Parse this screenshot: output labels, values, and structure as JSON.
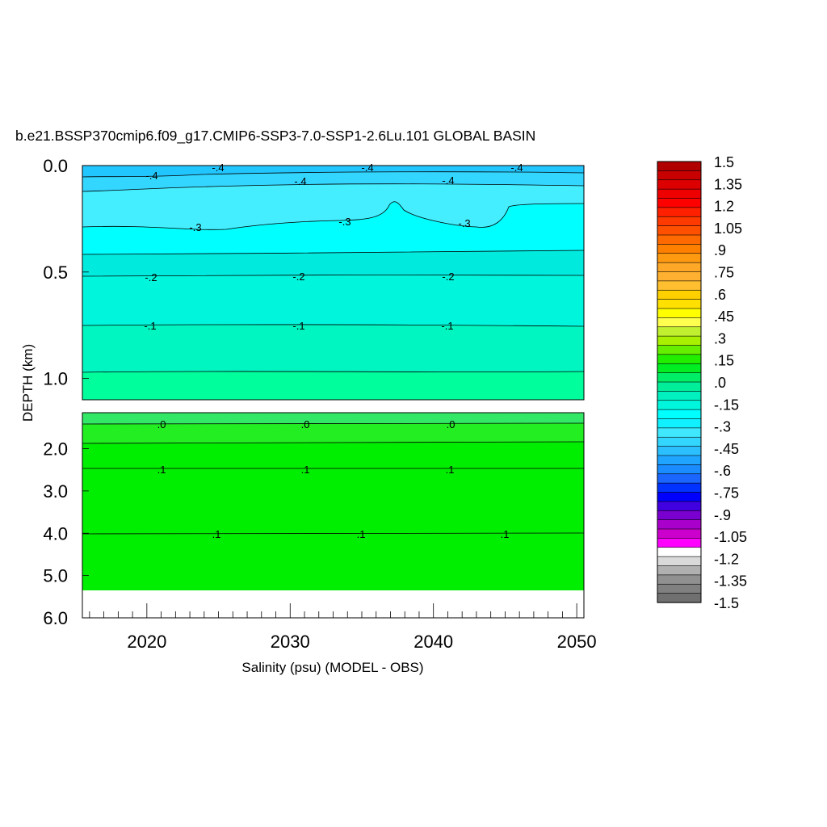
{
  "chart_data": {
    "type": "heatmap",
    "title": "b.e21.BSSP370cmip6.f09_g17.CMIP6-SSP3-7.0-SSP1-2.6Lu.101 GLOBAL BASIN",
    "xlabel": "Salinity (psu) (MODEL - OBS)",
    "ylabel": "DEPTH (km)",
    "xlim": [
      2015.5,
      2050.5
    ],
    "x_ticks": [
      "2020",
      "2030",
      "2040",
      "2050"
    ],
    "upper_panel": {
      "ylim": [
        0.0,
        1.1
      ],
      "y_ticks": [
        "0.0",
        "0.5",
        "1.0"
      ],
      "contours": [
        {
          "level": -0.4,
          "labels": [
            "-.4",
            "-.4",
            "-.4"
          ]
        },
        {
          "level": -0.4,
          "labels": [
            "-.4",
            "-.4",
            "-.4"
          ]
        },
        {
          "level": -0.3,
          "labels": [
            "-.3",
            "-.3",
            "-.3"
          ]
        },
        {
          "level": -0.2,
          "labels": [
            "-.2",
            "-.2",
            "-.2"
          ]
        },
        {
          "level": -0.1,
          "labels": [
            "-.1",
            "-.1",
            "-.1"
          ]
        }
      ]
    },
    "lower_panel": {
      "ylim": [
        1.15,
        6.0
      ],
      "y_ticks": [
        "2.0",
        "3.0",
        "4.0",
        "5.0",
        "6.0"
      ],
      "contours": [
        {
          "level": 0.0,
          "labels": [
            ".0",
            ".0",
            ".0"
          ]
        },
        {
          "level": 0.1,
          "labels": [
            ".1",
            ".1",
            ".1"
          ]
        },
        {
          "level": 0.1,
          "labels": [
            ".1",
            ".1",
            ".1"
          ]
        }
      ]
    },
    "colorbar": {
      "min": -1.5,
      "max": 1.5,
      "step": 0.075,
      "labels": [
        "1.5",
        "1.35",
        "1.2",
        "1.05",
        ".9",
        ".75",
        ".6",
        ".45",
        ".3",
        ".15",
        ".0",
        "-.15",
        "-.3",
        "-.45",
        "-.6",
        "-.75",
        "-.9",
        "-1.05",
        "-1.2",
        "-1.35",
        "-1.5"
      ],
      "colors": [
        "#b00000",
        "#c80000",
        "#dc0000",
        "#ef0000",
        "#ff0000",
        "#ff2000",
        "#ff3a00",
        "#ff5000",
        "#ff6a00",
        "#ff8000",
        "#ff9a10",
        "#ffa828",
        "#ffb030",
        "#ffbf30",
        "#ffd000",
        "#ffe000",
        "#ffff00",
        "#ffff50",
        "#c0f030",
        "#a8f000",
        "#66ee00",
        "#22ee00",
        "#00ee22",
        "#00ee66",
        "#00ee99",
        "#00f0c0",
        "#00f6dc",
        "#00ffff",
        "#10f0ff",
        "#40e8ff",
        "#33d6ff",
        "#2bbfff",
        "#1fa5ff",
        "#1a8cff",
        "#1a66ff",
        "#0033ff",
        "#0000ff",
        "#4000e0",
        "#7a00d0",
        "#aa00cc",
        "#cc00cc",
        "#ff00ff",
        "#ffffff",
        "#d9d9d9",
        "#b0b0b0",
        "#909090",
        "#808080",
        "#707070"
      ]
    }
  }
}
